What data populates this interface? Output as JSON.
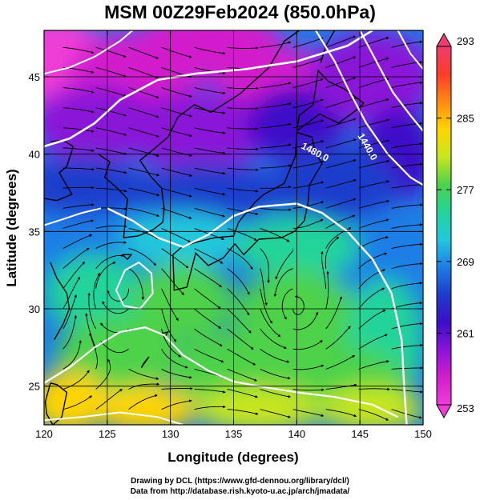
{
  "title": "MSM 00Z29Feb2024 (850.0hPa)",
  "credits": {
    "line1": "Drawing by DCL (https://www.gfd-dennou.org/library/dcl/)",
    "line2": "Data from http://database.rish.kyoto-u.ac.jp/arch/jmadata/"
  },
  "map": {
    "xlabel": "Longitude (degrees)",
    "ylabel": "Latitude  (degrees)",
    "xlim": [
      120,
      150
    ],
    "ylim": [
      22.5,
      48
    ],
    "xticks": [
      "120",
      "125",
      "130",
      "135",
      "140",
      "145",
      "150"
    ],
    "yticks": [
      "25",
      "30",
      "35",
      "40",
      "45"
    ],
    "contour_labels": [
      "1480.0",
      "1440.0"
    ],
    "fields": [
      "temperature (shaded)",
      "wind streamlines",
      "geopotential height contours",
      "coastlines"
    ],
    "vortices": [
      {
        "name": "cyclone",
        "lon": 140.0,
        "lat": 30.0
      },
      {
        "name": "anticyclone",
        "lon": 126.0,
        "lat": 31.5
      }
    ]
  },
  "colorbar": {
    "labels": [
      "293",
      "285",
      "277",
      "269",
      "261",
      "253"
    ],
    "min": 253,
    "max": 293,
    "colors": [
      "#f03c6e",
      "#ff3c2a",
      "#ff8a14",
      "#ffd400",
      "#c8e61e",
      "#4ed24a",
      "#22d49a",
      "#22c8dc",
      "#1e7ee6",
      "#1e3ccc",
      "#3c0ec8",
      "#8a14d8",
      "#d21ecc",
      "#f03cd8"
    ]
  }
}
